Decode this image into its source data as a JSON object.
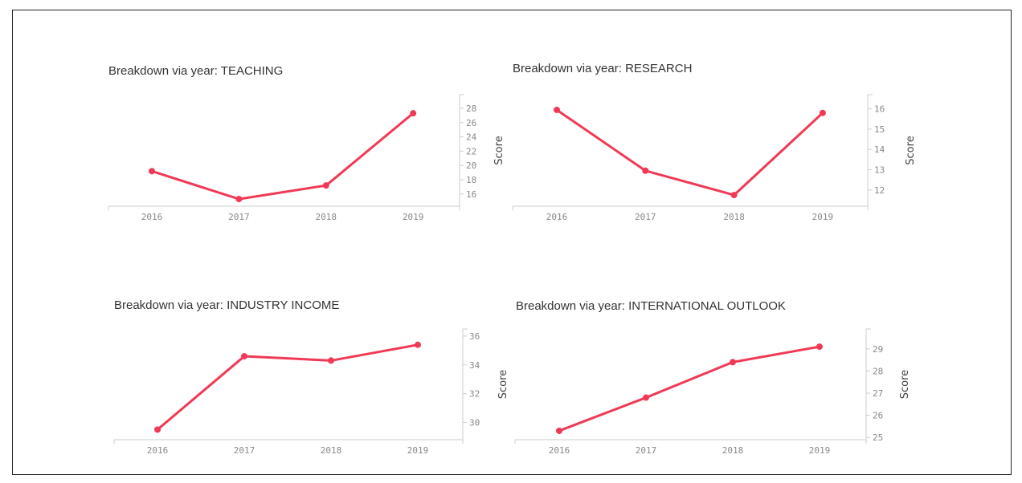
{
  "style": {
    "line_color": "#f03a55",
    "axis_color": "#cccccc",
    "text_color": "#888888"
  },
  "chart_data": [
    {
      "type": "line",
      "title": "Breakdown via year: TEACHING",
      "ylabel": "Score",
      "categories": [
        "2016",
        "2017",
        "2018",
        "2019"
      ],
      "values": [
        19.2,
        15.3,
        17.2,
        27.3
      ],
      "yticks": [
        16,
        18,
        20,
        22,
        24,
        26,
        28
      ],
      "ylim": [
        14.3,
        29.9
      ],
      "grid": false
    },
    {
      "type": "line",
      "title": "Breakdown via year: RESEARCH",
      "ylabel": "Score",
      "categories": [
        "2016",
        "2017",
        "2018",
        "2019"
      ],
      "values": [
        15.95,
        12.95,
        11.75,
        15.8
      ],
      "yticks": [
        12,
        13,
        14,
        15,
        16
      ],
      "ylim": [
        11.2,
        16.7
      ],
      "grid": false
    },
    {
      "type": "line",
      "title": "Breakdown via year: INDUSTRY INCOME",
      "ylabel": "Score",
      "categories": [
        "2016",
        "2017",
        "2018",
        "2019"
      ],
      "values": [
        29.5,
        34.6,
        34.3,
        35.4
      ],
      "yticks": [
        30,
        32,
        34,
        36
      ],
      "ylim": [
        28.8,
        36.5
      ],
      "grid": false
    },
    {
      "type": "line",
      "title": "Breakdown via year: INTERNATIONAL OUTLOOK",
      "ylabel": "Score",
      "categories": [
        "2016",
        "2017",
        "2018",
        "2019"
      ],
      "values": [
        25.3,
        26.8,
        28.4,
        29.1
      ],
      "yticks": [
        25,
        26,
        27,
        28,
        29
      ],
      "ylim": [
        24.9,
        29.9
      ],
      "grid": false
    }
  ]
}
